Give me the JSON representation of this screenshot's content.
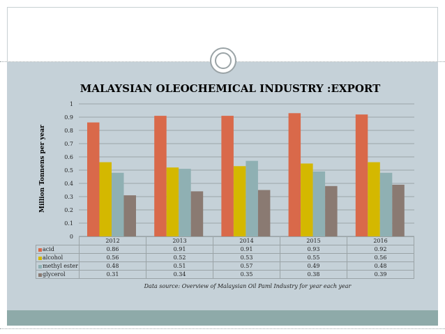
{
  "chart_data": {
    "type": "bar",
    "title": "MALAYSIAN OLEOCHEMICAL INDUSTRY :EXPORT",
    "ylabel": "Million Tonnens per year",
    "xlabel": "",
    "categories": [
      "2012",
      "2013",
      "2014",
      "2015",
      "2016"
    ],
    "ylim": [
      0,
      1
    ],
    "yticks": [
      "0",
      "0.1",
      "0.2",
      "0.3",
      "0.4",
      "0.5",
      "0.6",
      "0.7",
      "0.8",
      "0.9",
      "1"
    ],
    "grid": true,
    "series": [
      {
        "name": "acid",
        "color": "#d9694a",
        "values": [
          0.86,
          0.91,
          0.91,
          0.93,
          0.92
        ],
        "display": [
          "0.86",
          "0.91",
          "0.91",
          "0.93",
          "0.92"
        ]
      },
      {
        "name": "alcohol",
        "color": "#d4b800",
        "values": [
          0.56,
          0.52,
          0.53,
          0.55,
          0.56
        ],
        "display": [
          "0.56",
          "0.52",
          "0.53",
          "0.55",
          "0.56"
        ]
      },
      {
        "name": "methyl ester",
        "color": "#8fb0b3",
        "values": [
          0.48,
          0.51,
          0.57,
          0.49,
          0.48
        ],
        "display": [
          "0.48",
          "0.51",
          "0.57",
          "0.49",
          "0.48"
        ]
      },
      {
        "name": "glycerol",
        "color": "#8a7a72",
        "values": [
          0.31,
          0.34,
          0.35,
          0.38,
          0.39
        ],
        "display": [
          "0.31",
          "0.34",
          "0.35",
          "0.38",
          "0.39"
        ]
      }
    ],
    "source_prefix": "Data source: ",
    "source_text": "Overview of Malaysian Oil Paml Industry for year each year"
  }
}
